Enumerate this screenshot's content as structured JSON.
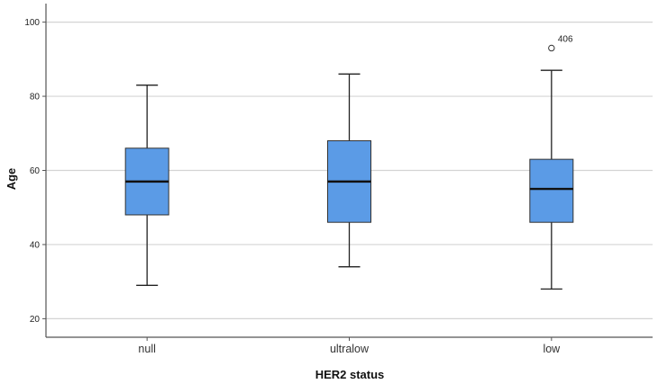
{
  "chart_data": {
    "type": "boxplot",
    "xlabel": "HER2 status",
    "ylabel": "Age",
    "ylim": [
      15,
      105
    ],
    "yticks": [
      20,
      40,
      60,
      80,
      100
    ],
    "grid": "horizontal",
    "box_color": "#5b9be6",
    "categories": [
      "null",
      "ultralow",
      "low"
    ],
    "boxes": [
      {
        "category": "null",
        "whisker_low": 29,
        "q1": 48,
        "median": 57,
        "q3": 66,
        "whisker_high": 83,
        "outliers": []
      },
      {
        "category": "ultralow",
        "whisker_low": 34,
        "q1": 46,
        "median": 57,
        "q3": 68,
        "whisker_high": 86,
        "outliers": []
      },
      {
        "category": "low",
        "whisker_low": 28,
        "q1": 46,
        "median": 55,
        "q3": 63,
        "whisker_high": 87,
        "outliers": [
          {
            "value": 93,
            "label": "406"
          }
        ]
      }
    ]
  }
}
